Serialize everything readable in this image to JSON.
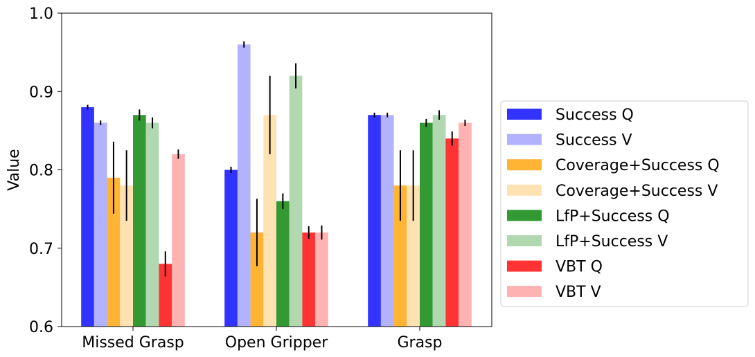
{
  "chart_data": {
    "type": "bar",
    "title": "",
    "xlabel": "",
    "ylabel": "Value",
    "ylim": [
      0.6,
      1.0
    ],
    "yticks": [
      "0.6",
      "0.7",
      "0.8",
      "0.9",
      "1.0"
    ],
    "categories": [
      "Missed Grasp",
      "Open Gripper",
      "Grasp"
    ],
    "grid": false,
    "legend_position": "right",
    "series": [
      {
        "name": "Success Q",
        "color": "#3333ff",
        "values": [
          0.88,
          0.8,
          0.87
        ],
        "errors": [
          0.003,
          0.004,
          0.003
        ]
      },
      {
        "name": "Success V",
        "color": "#b2b2ff",
        "values": [
          0.86,
          0.96,
          0.87
        ],
        "errors": [
          0.003,
          0.004,
          0.003
        ]
      },
      {
        "name": "Coverage+Success Q",
        "color": "#ffb433",
        "values": [
          0.79,
          0.72,
          0.78
        ],
        "errors": [
          0.046,
          0.043,
          0.045
        ]
      },
      {
        "name": "Coverage+Success V",
        "color": "#ffe2b2",
        "values": [
          0.78,
          0.87,
          0.78
        ],
        "errors": [
          0.045,
          0.05,
          0.045
        ]
      },
      {
        "name": "LfP+Success Q",
        "color": "#339933",
        "values": [
          0.87,
          0.76,
          0.86
        ],
        "errors": [
          0.007,
          0.01,
          0.005
        ]
      },
      {
        "name": "LfP+Success V",
        "color": "#b2d8b2",
        "values": [
          0.86,
          0.92,
          0.87
        ],
        "errors": [
          0.007,
          0.016,
          0.006
        ]
      },
      {
        "name": "VBT Q",
        "color": "#ff3333",
        "values": [
          0.68,
          0.72,
          0.84
        ],
        "errors": [
          0.016,
          0.008,
          0.009
        ]
      },
      {
        "name": "VBT V",
        "color": "#ffb2b2",
        "values": [
          0.82,
          0.72,
          0.86
        ],
        "errors": [
          0.006,
          0.009,
          0.004
        ]
      }
    ]
  }
}
